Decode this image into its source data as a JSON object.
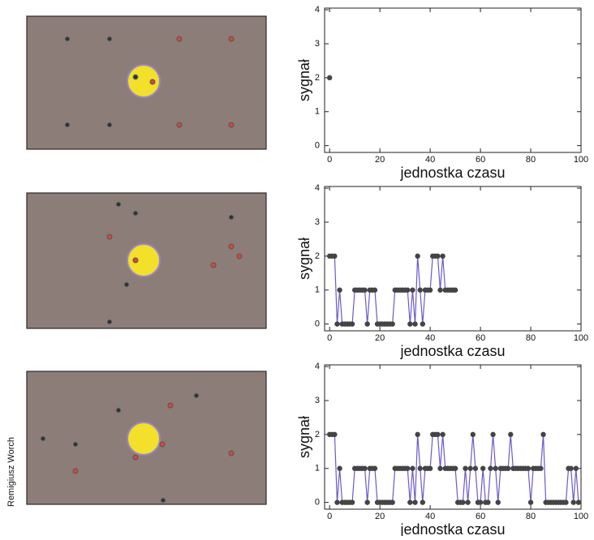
{
  "chart_data": [
    {
      "type": "line",
      "x_label": "jednostka czasu",
      "y_label": "sygnał",
      "xlim": [
        -2,
        100
      ],
      "ylim": [
        -0.2,
        4.05
      ],
      "xticks": [
        0,
        20,
        40,
        60,
        80,
        100
      ],
      "yticks": [
        0,
        1,
        2,
        3,
        4
      ],
      "grid": false,
      "series": [
        {
          "color": "#6a5acd",
          "marker_color": "#444444",
          "x": [
            0
          ],
          "values": [
            2
          ]
        }
      ]
    },
    {
      "type": "line",
      "x_label": "jednostka czasu",
      "y_label": "sygnał",
      "xlim": [
        -2,
        100
      ],
      "ylim": [
        -0.2,
        4.05
      ],
      "xticks": [
        0,
        20,
        40,
        60,
        80,
        100
      ],
      "yticks": [
        0,
        1,
        2,
        3,
        4
      ],
      "grid": false,
      "series": [
        {
          "color": "#6a5acd",
          "marker_color": "#444444",
          "x": [
            0,
            1,
            2,
            3,
            4,
            5,
            6,
            7,
            8,
            9,
            10,
            11,
            12,
            13,
            14,
            15,
            16,
            17,
            18,
            19,
            20,
            21,
            22,
            23,
            24,
            25,
            26,
            27,
            28,
            29,
            30,
            31,
            32,
            33,
            34,
            35,
            36,
            37,
            38,
            39,
            40,
            41,
            42,
            43,
            44,
            45,
            46,
            47,
            48,
            49,
            50
          ],
          "values": [
            2,
            2,
            2,
            0,
            1,
            0,
            0,
            0,
            0,
            0,
            1,
            1,
            1,
            1,
            1,
            0,
            1,
            1,
            1,
            0,
            0,
            0,
            0,
            0,
            0,
            0,
            1,
            1,
            1,
            1,
            1,
            1,
            0,
            1,
            0,
            2,
            1,
            0,
            1,
            1,
            1,
            2,
            2,
            2,
            1,
            2,
            1,
            1,
            1,
            1,
            1
          ]
        }
      ]
    },
    {
      "type": "line",
      "x_label": "jednostka czasu",
      "y_label": "sygnał",
      "xlim": [
        -2,
        100
      ],
      "ylim": [
        -0.2,
        4.05
      ],
      "xticks": [
        0,
        20,
        40,
        60,
        80,
        100
      ],
      "yticks": [
        0,
        1,
        2,
        3,
        4
      ],
      "grid": false,
      "series": [
        {
          "color": "#6a5acd",
          "marker_color": "#444444",
          "x": [
            0,
            1,
            2,
            3,
            4,
            5,
            6,
            7,
            8,
            9,
            10,
            11,
            12,
            13,
            14,
            15,
            16,
            17,
            18,
            19,
            20,
            21,
            22,
            23,
            24,
            25,
            26,
            27,
            28,
            29,
            30,
            31,
            32,
            33,
            34,
            35,
            36,
            37,
            38,
            39,
            40,
            41,
            42,
            43,
            44,
            45,
            46,
            47,
            48,
            49,
            50,
            51,
            52,
            53,
            54,
            55,
            56,
            57,
            58,
            59,
            60,
            61,
            62,
            63,
            64,
            65,
            66,
            67,
            68,
            69,
            70,
            71,
            72,
            73,
            74,
            75,
            76,
            77,
            78,
            79,
            80,
            81,
            82,
            83,
            84,
            85,
            86,
            87,
            88,
            89,
            90,
            91,
            92,
            93,
            94,
            95,
            96,
            97,
            98,
            99
          ],
          "values": [
            2,
            2,
            2,
            0,
            1,
            0,
            0,
            0,
            0,
            0,
            1,
            1,
            1,
            1,
            1,
            0,
            1,
            1,
            1,
            0,
            0,
            0,
            0,
            0,
            0,
            0,
            1,
            1,
            1,
            1,
            1,
            1,
            0,
            1,
            0,
            2,
            1,
            0,
            1,
            1,
            1,
            2,
            2,
            2,
            1,
            2,
            1,
            1,
            1,
            1,
            1,
            0,
            0,
            0,
            1,
            0,
            1,
            2,
            1,
            0,
            0,
            1,
            0,
            0,
            1,
            2,
            1,
            0,
            1,
            1,
            1,
            1,
            2,
            1,
            1,
            1,
            1,
            1,
            1,
            1,
            0,
            1,
            1,
            1,
            1,
            2,
            0,
            0,
            0,
            0,
            0,
            0,
            0,
            0,
            0,
            1,
            1,
            0,
            1,
            0
          ]
        }
      ]
    }
  ],
  "credit": "Remigiusz Worch"
}
